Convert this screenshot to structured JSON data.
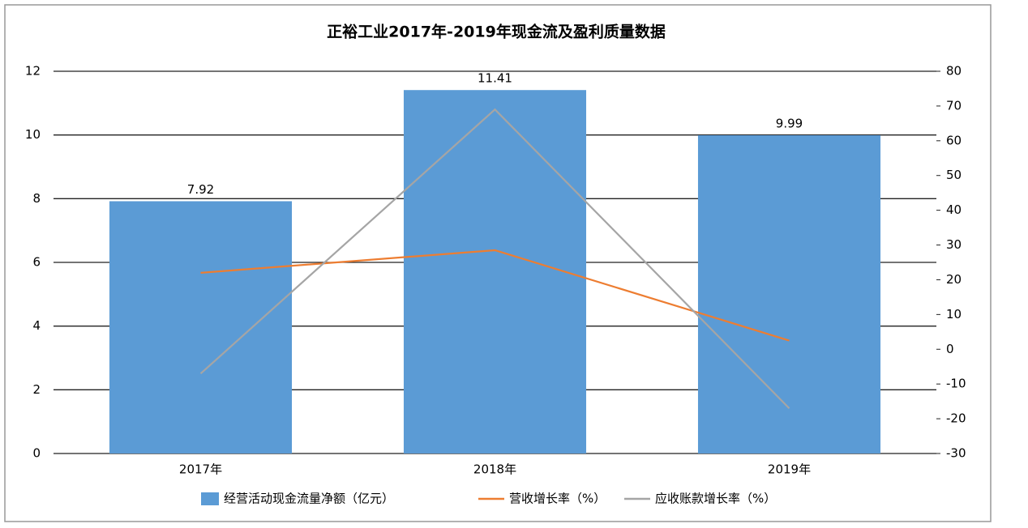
{
  "chart_data": {
    "type": "bar",
    "title": "正裕工业2017年-2019年现金流及盈利质量数据",
    "categories": [
      "2017年",
      "2018年",
      "2019年"
    ],
    "series": [
      {
        "name": "经营活动现金流量净额（亿元）",
        "type": "bar",
        "color": "#5b9bd5",
        "values": [
          7.92,
          11.41,
          9.99
        ],
        "value_labels": [
          "7.92",
          "11.41",
          "9.99"
        ]
      },
      {
        "name": "营收增长率（%）",
        "type": "line",
        "axis": "y2",
        "color": "#ed7d31",
        "values": [
          22,
          28.5,
          2.5
        ]
      },
      {
        "name": "应收账款增长率（%）",
        "type": "line",
        "axis": "y2",
        "color": "#a5a5a5",
        "values": [
          -7,
          69,
          -17
        ]
      }
    ],
    "ylim": [
      0,
      12
    ],
    "yticks": [
      0,
      2,
      4,
      6,
      8,
      10,
      12
    ],
    "y2lim": [
      -30,
      80
    ],
    "y2ticks": [
      -30,
      -20,
      -10,
      0,
      10,
      20,
      30,
      40,
      50,
      60,
      70,
      80
    ],
    "grid": true,
    "legend": "bottom"
  }
}
